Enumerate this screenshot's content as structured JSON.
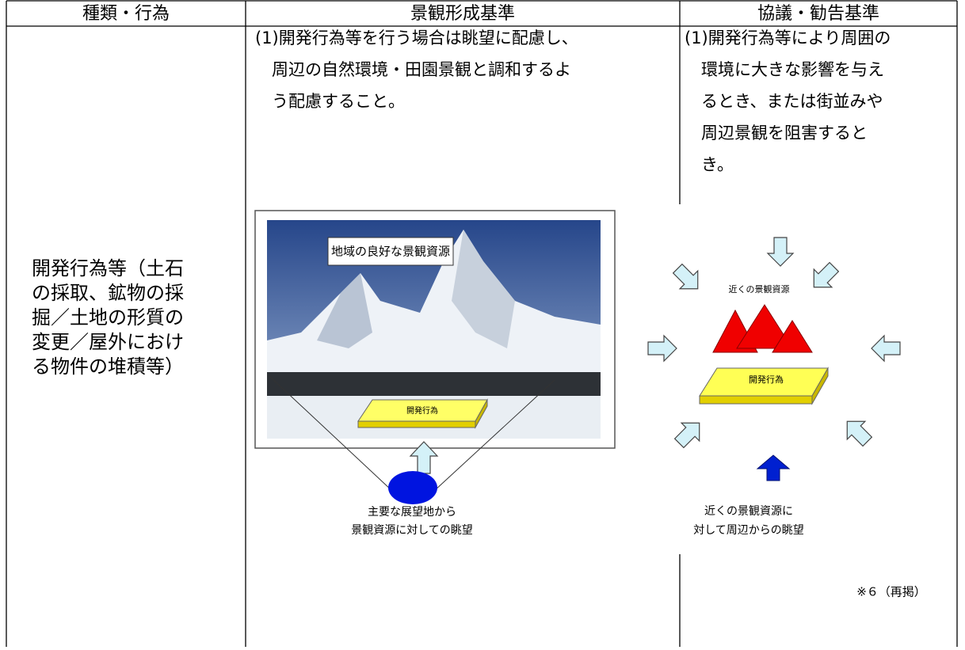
{
  "table": {
    "header": [
      "種類・行為",
      "景観形成基準",
      "協議・勧告基準"
    ],
    "row": {
      "type_lines": [
        "開発行為等（土石",
        "の採取、鉱物の採",
        "掘／土地の形質の",
        "変更／屋外におけ",
        "る物件の堆積等）"
      ],
      "standard_lines": [
        "(1)開発行為等を行う場合は眺望に配慮し、",
        "周辺の自然環境・田園景観と調和するよ",
        "う配慮すること。"
      ],
      "consultation_lines": [
        "(1)開発行為等により周囲の",
        "環境に大きな影響を与え",
        "るとき、または街並みや",
        "周辺景観を阻害すると",
        "き。"
      ]
    }
  },
  "figures": {
    "left": {
      "caption": "地域の良好な景観資源",
      "slab": "開発行為",
      "view_lines": [
        "主要な展望地から",
        "景観資源に対しての眺望"
      ]
    },
    "right": {
      "resource": "近くの景観資源",
      "slab": "開発行為",
      "view_lines": [
        "近くの景観資源に",
        "対して周辺からの眺望"
      ],
      "note": "※６（再掲）"
    }
  }
}
